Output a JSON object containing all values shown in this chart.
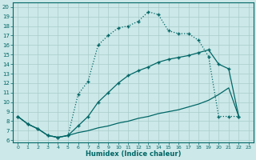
{
  "xlabel": "Humidex (Indice chaleur)",
  "background_color": "#cce8e8",
  "grid_color": "#aacccc",
  "line_color": "#006666",
  "xlim": [
    -0.5,
    23.5
  ],
  "ylim": [
    5.8,
    20.5
  ],
  "xticks": [
    0,
    1,
    2,
    3,
    4,
    5,
    6,
    7,
    8,
    9,
    10,
    11,
    12,
    13,
    14,
    15,
    16,
    17,
    18,
    19,
    20,
    21,
    22,
    23
  ],
  "yticks": [
    6,
    7,
    8,
    9,
    10,
    11,
    12,
    13,
    14,
    15,
    16,
    17,
    18,
    19,
    20
  ],
  "lines": [
    {
      "x": [
        0,
        1,
        2,
        3,
        4,
        5,
        6,
        7,
        8,
        9,
        10,
        11,
        12,
        13,
        14,
        15,
        16,
        17,
        18,
        19,
        20,
        21,
        22
      ],
      "y": [
        8.5,
        7.7,
        7.2,
        6.5,
        6.3,
        6.5,
        10.8,
        12.2,
        16.0,
        17.0,
        17.8,
        18.0,
        18.5,
        19.5,
        19.2,
        17.5,
        17.2,
        17.2,
        16.5,
        14.8,
        8.5,
        8.5,
        8.5
      ],
      "linestyle": "dotted",
      "marker": "+"
    },
    {
      "x": [
        0,
        1,
        2,
        3,
        4,
        5,
        6,
        7,
        8,
        9,
        10,
        11,
        12,
        13,
        14,
        15,
        16,
        17,
        18,
        19,
        20,
        21,
        22
      ],
      "y": [
        8.5,
        7.7,
        7.2,
        6.5,
        6.3,
        6.5,
        6.8,
        7.0,
        7.3,
        7.5,
        7.8,
        8.0,
        8.3,
        8.5,
        8.8,
        9.0,
        9.2,
        9.5,
        9.8,
        10.2,
        10.8,
        11.5,
        8.5
      ],
      "linestyle": "-",
      "marker": null
    },
    {
      "x": [
        0,
        1,
        2,
        3,
        4,
        5,
        6,
        7,
        8,
        9,
        10,
        11,
        12,
        13,
        14,
        15,
        16,
        17,
        18,
        19,
        20,
        21,
        22
      ],
      "y": [
        8.5,
        7.7,
        7.2,
        6.5,
        6.3,
        6.5,
        7.5,
        8.5,
        10.0,
        11.0,
        12.0,
        12.8,
        13.3,
        13.7,
        14.2,
        14.5,
        14.7,
        14.9,
        15.2,
        15.5,
        14.0,
        13.5,
        8.5
      ],
      "linestyle": "-",
      "marker": "+"
    }
  ]
}
